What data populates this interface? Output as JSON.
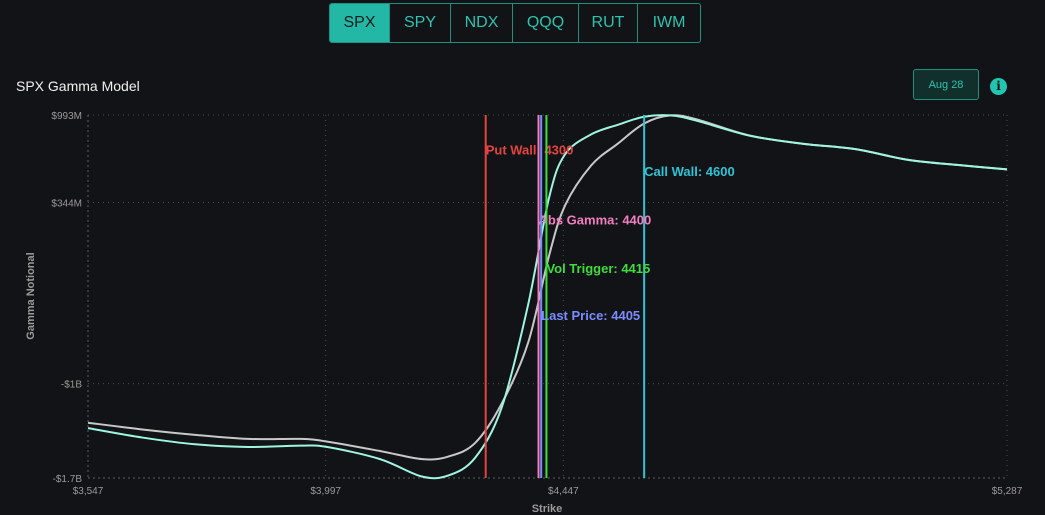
{
  "tabs": [
    {
      "label": "SPX",
      "active": true
    },
    {
      "label": "SPY",
      "active": false
    },
    {
      "label": "NDX",
      "active": false
    },
    {
      "label": "QQQ",
      "active": false
    },
    {
      "label": "RUT",
      "active": false
    },
    {
      "label": "IWM",
      "active": false
    }
  ],
  "header": {
    "title": "SPX Gamma Model",
    "date_button": "Aug 28",
    "info_icon": "info-icon"
  },
  "colors": {
    "accent": "#23b8a5",
    "put_wall": "#e5433f",
    "call_wall": "#2ec4d6",
    "abs_gamma": "#f07fbf",
    "vol_trigger": "#3fdc3f",
    "last_price": "#7a8cff",
    "curve_primary": "#9ff5e2",
    "curve_secondary": "#c8c8c8"
  },
  "chart_data": {
    "type": "line",
    "xlabel": "Strike",
    "ylabel": "Gamma Notional",
    "xlim": [
      3547,
      5287
    ],
    "ylim": [
      -1.7,
      0.993
    ],
    "x_ticks": [
      {
        "value": 3547,
        "label": "$3,547"
      },
      {
        "value": 3997,
        "label": "$3,997"
      },
      {
        "value": 4447,
        "label": "$4,447"
      },
      {
        "value": 5287,
        "label": "$5,287"
      }
    ],
    "y_ticks": [
      {
        "value": 0.993,
        "label": "$993M"
      },
      {
        "value": 0.344,
        "label": "$344M"
      },
      {
        "value": -1.0,
        "label": "-$1B"
      },
      {
        "value": -1.7,
        "label": "-$1.7B"
      }
    ],
    "grid": true,
    "series": [
      {
        "color": "#9ff5e2",
        "points": [
          [
            3547,
            -1.33
          ],
          [
            3650,
            -1.4
          ],
          [
            3750,
            -1.45
          ],
          [
            3850,
            -1.47
          ],
          [
            3950,
            -1.46
          ],
          [
            4000,
            -1.47
          ],
          [
            4100,
            -1.56
          ],
          [
            4180,
            -1.69
          ],
          [
            4230,
            -1.68
          ],
          [
            4280,
            -1.55
          ],
          [
            4330,
            -1.18
          ],
          [
            4380,
            -0.42
          ],
          [
            4420,
            0.38
          ],
          [
            4450,
            0.7
          ],
          [
            4500,
            0.85
          ],
          [
            4550,
            0.92
          ],
          [
            4600,
            0.98
          ],
          [
            4650,
            0.99
          ],
          [
            4700,
            0.95
          ],
          [
            4800,
            0.84
          ],
          [
            4900,
            0.78
          ],
          [
            5000,
            0.74
          ],
          [
            5100,
            0.66
          ],
          [
            5200,
            0.62
          ],
          [
            5287,
            0.59
          ]
        ]
      },
      {
        "color": "#c8c8c8",
        "points": [
          [
            3547,
            -1.29
          ],
          [
            3650,
            -1.34
          ],
          [
            3750,
            -1.38
          ],
          [
            3850,
            -1.41
          ],
          [
            3950,
            -1.41
          ],
          [
            4000,
            -1.43
          ],
          [
            4100,
            -1.5
          ],
          [
            4180,
            -1.56
          ],
          [
            4230,
            -1.54
          ],
          [
            4280,
            -1.44
          ],
          [
            4330,
            -1.15
          ],
          [
            4380,
            -0.7
          ],
          [
            4420,
            -0.05
          ],
          [
            4450,
            0.32
          ],
          [
            4500,
            0.62
          ],
          [
            4550,
            0.78
          ],
          [
            4600,
            0.93
          ],
          [
            4650,
            0.99
          ],
          [
            4700,
            0.96
          ],
          [
            4800,
            0.84
          ],
          [
            4900,
            0.78
          ],
          [
            5000,
            0.74
          ],
          [
            5100,
            0.66
          ],
          [
            5200,
            0.62
          ],
          [
            5287,
            0.59
          ]
        ]
      }
    ],
    "annotations": [
      {
        "key": "put_wall",
        "label": "Put Wall: 4300",
        "strike": 4300,
        "color": "#e5433f",
        "label_y": 0.73
      },
      {
        "key": "call_wall",
        "label": "Call Wall: 4600",
        "strike": 4600,
        "color": "#2ec4d6",
        "label_y": 0.57
      },
      {
        "key": "abs_gamma",
        "label": "Abs Gamma: 4400",
        "strike": 4400,
        "color": "#f07fbf",
        "label_y": 0.21
      },
      {
        "key": "vol_trigger",
        "label": "Vol Trigger: 4415",
        "strike": 4415,
        "color": "#3fdc3f",
        "label_y": -0.15
      },
      {
        "key": "last_price",
        "label": "Last Price: 4405",
        "strike": 4405,
        "color": "#7a8cff",
        "label_y": -0.5
      }
    ]
  }
}
